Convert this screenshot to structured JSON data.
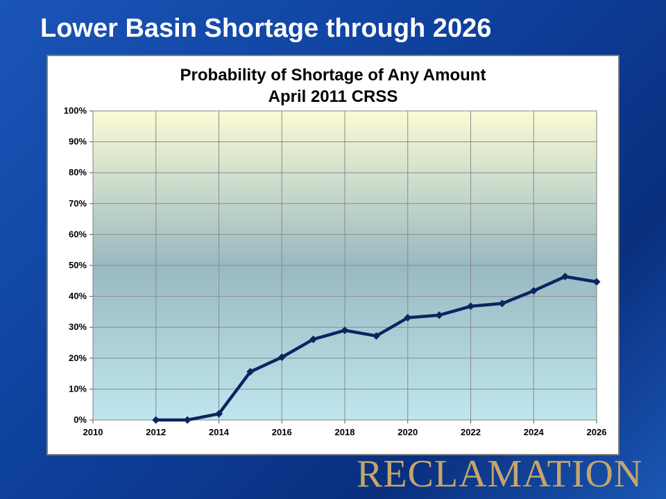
{
  "slide": {
    "title": "Lower Basin Shortage through 2026"
  },
  "logo": {
    "text": "RECLAMATION"
  },
  "chart_data": {
    "type": "line",
    "title": "Probability of Shortage of Any Amount",
    "subtitle": "April 2011 CRSS",
    "xlabel": "",
    "ylabel": "",
    "xlim": [
      2010,
      2026
    ],
    "ylim": [
      0,
      100
    ],
    "x_ticks": [
      "2010",
      "2012",
      "2014",
      "2016",
      "2018",
      "2020",
      "2022",
      "2024",
      "2026"
    ],
    "y_ticks": [
      "0%",
      "10%",
      "20%",
      "30%",
      "40%",
      "50%",
      "60%",
      "70%",
      "80%",
      "90%",
      "100%"
    ],
    "grid": true,
    "legend": "none",
    "colors": {
      "line": "#0b2560",
      "plot_top": "#fbfbd4",
      "plot_mid": "#99b9c2",
      "plot_bottom": "#bfe6ee",
      "grid": "#8a8a8a"
    },
    "series": [
      {
        "x": [
          2012,
          2013,
          2014,
          2015,
          2016,
          2017,
          2018,
          2019,
          2020,
          2021,
          2022,
          2023,
          2024,
          2025,
          2026
        ],
        "values": [
          0,
          0,
          2,
          15.6,
          20.3,
          26.1,
          29,
          27.2,
          33.1,
          33.9,
          36.8,
          37.7,
          41.8,
          46.4,
          44.7
        ]
      }
    ]
  }
}
